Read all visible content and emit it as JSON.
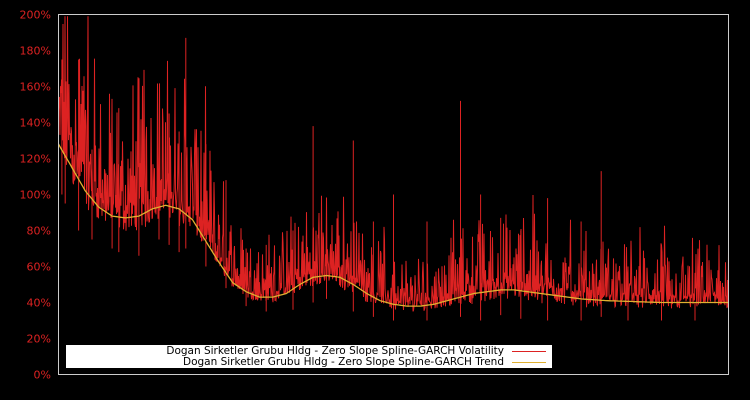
{
  "chart_data": {
    "type": "line",
    "title": "",
    "xlabel": "",
    "ylabel": "",
    "ylim": [
      0,
      200
    ],
    "y_tick_labels": [
      "0%",
      "20%",
      "40%",
      "60%",
      "80%",
      "100%",
      "120%",
      "140%",
      "160%",
      "180%",
      "200%"
    ],
    "y_ticks": [
      0,
      20,
      40,
      60,
      80,
      100,
      120,
      140,
      160,
      180,
      200
    ],
    "x_tick_labels": [],
    "grid": false,
    "legend_position": "lower-center-inside",
    "colors": {
      "background": "#000000",
      "frame": "#cccccc",
      "tick_text": "#dd2222",
      "volatility": "#dd2222",
      "trend": "#e0b030"
    },
    "series": [
      {
        "name": "Dogan Sirketler Grubu Hldg - Zero Slope Spline-GARCH Volatility",
        "style": "dense-line",
        "x_fraction": [
          0.0,
          0.005,
          0.01,
          0.03,
          0.05,
          0.08,
          0.09,
          0.12,
          0.15,
          0.165,
          0.18,
          0.19,
          0.22,
          0.25,
          0.28,
          0.31,
          0.35,
          0.38,
          0.4,
          0.44,
          0.47,
          0.5,
          0.55,
          0.6,
          0.63,
          0.66,
          0.69,
          0.73,
          0.78,
          0.81,
          0.85,
          0.9,
          0.95,
          1.0
        ],
        "peaks": [
          195,
          175,
          145,
          175,
          125,
          125,
          148,
          130,
          120,
          145,
          135,
          187,
          128,
          108,
          70,
          72,
          80,
          138,
          75,
          130,
          85,
          100,
          85,
          152,
          100,
          87,
          80,
          98,
          85,
          113,
          60,
          71,
          40,
          44
        ],
        "baseline": [
          110,
          100,
          95,
          80,
          75,
          70,
          68,
          66,
          75,
          72,
          68,
          70,
          60,
          48,
          38,
          35,
          36,
          40,
          42,
          35,
          32,
          30,
          30,
          32,
          30,
          33,
          31,
          30,
          30,
          32,
          30,
          30,
          30,
          30
        ]
      },
      {
        "name": "Dogan Sirketler Grubu Hldg - Zero Slope Spline-GARCH Trend",
        "style": "line",
        "x_fraction": [
          0.0,
          0.02,
          0.04,
          0.06,
          0.08,
          0.1,
          0.12,
          0.14,
          0.16,
          0.18,
          0.2,
          0.22,
          0.24,
          0.26,
          0.28,
          0.3,
          0.32,
          0.34,
          0.36,
          0.38,
          0.4,
          0.42,
          0.44,
          0.46,
          0.48,
          0.5,
          0.52,
          0.54,
          0.56,
          0.58,
          0.6,
          0.62,
          0.64,
          0.66,
          0.68,
          0.7,
          0.74,
          0.78,
          0.82,
          0.86,
          0.9,
          0.95,
          1.0
        ],
        "values": [
          128,
          115,
          102,
          93,
          88,
          87,
          88,
          92,
          94,
          92,
          86,
          74,
          62,
          51,
          46,
          43,
          43,
          45,
          50,
          54,
          55,
          54,
          50,
          45,
          41,
          39,
          38,
          38,
          39,
          41,
          43,
          45,
          46,
          47,
          47,
          46,
          44,
          42,
          41,
          40.5,
          40,
          40,
          40
        ]
      }
    ]
  },
  "legend": {
    "items": [
      {
        "label": "Dogan Sirketler Grubu Hldg - Zero Slope Spline-GARCH Volatility",
        "color": "#dd2222"
      },
      {
        "label": "Dogan Sirketler Grubu Hldg - Zero Slope Spline-GARCH Trend",
        "color": "#e0b030"
      }
    ]
  }
}
